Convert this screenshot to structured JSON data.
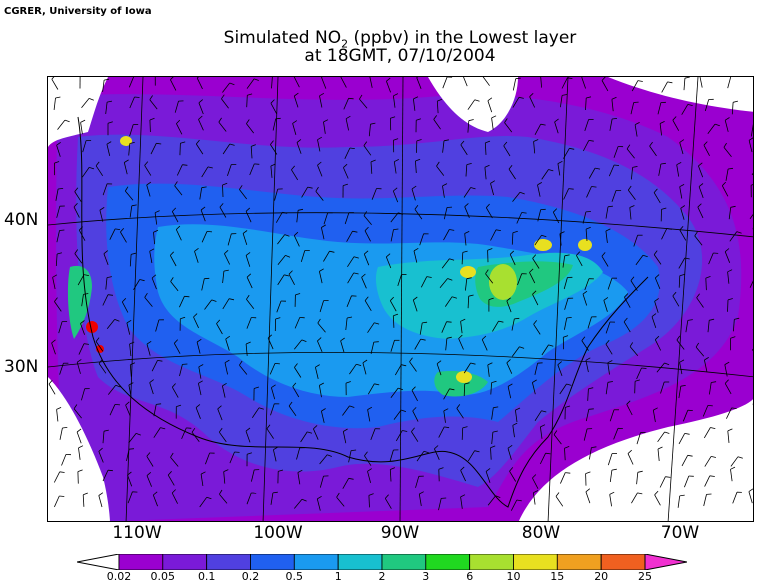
{
  "credit": "CGRER, University of Iowa",
  "title_prefix": "Simulated NO",
  "title_sub": "2",
  "title_suffix": " (ppbv) in the Lowest layer",
  "title_line2": "at 18GMT, 07/10/2004",
  "lat_labels": [
    "40N",
    "30N"
  ],
  "lon_labels": [
    "110W",
    "100W",
    "90W",
    "80W",
    "70W"
  ],
  "colorbar": {
    "labels": [
      "0.02",
      "0.05",
      "0.1",
      "0.2",
      "0.5",
      "1",
      "2",
      "3",
      "6",
      "10",
      "15",
      "20",
      "25"
    ],
    "colors": [
      "#9a00d0",
      "#7a1ad8",
      "#5040e0",
      "#2060f0",
      "#1a9af0",
      "#18c0d0",
      "#20c880",
      "#20d820",
      "#a8e030",
      "#e8e020",
      "#f0a020",
      "#f06020",
      "#f00000",
      "#f030d0"
    ],
    "under_color": "#ffffff",
    "over_color": "#f030d0"
  },
  "map_colors": {
    "background_low": "#ffffff",
    "level_1": "#9a00d0",
    "level_2": "#7a1ad8",
    "level_3": "#5040e0",
    "level_4": "#2060f0",
    "level_5": "#1a9af0",
    "level_6": "#18c0d0",
    "level_7": "#20c880",
    "level_8": "#a8e030",
    "level_9": "#e8e020",
    "level_hot": "#f00000"
  }
}
